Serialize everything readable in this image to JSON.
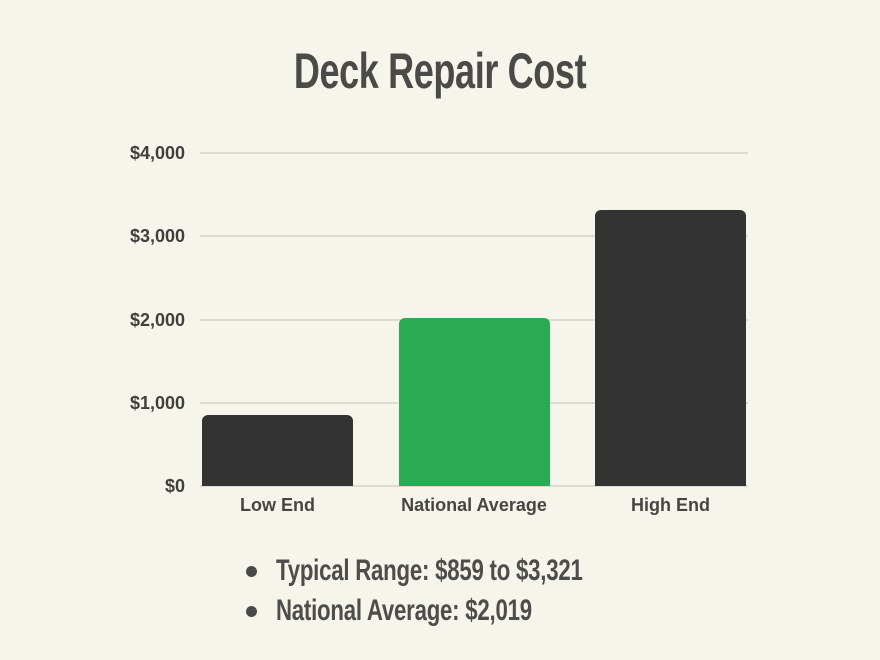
{
  "chart_data": {
    "type": "bar",
    "title": "Deck Repair Cost",
    "categories": [
      "Low End",
      "National Average",
      "High End"
    ],
    "values": [
      859,
      2019,
      3321
    ],
    "bar_colors": [
      "#333333",
      "#2aaa52",
      "#333333"
    ],
    "ylim": [
      0,
      4000
    ],
    "yticks": [
      {
        "value": 4000,
        "label": "$4,000"
      },
      {
        "value": 3000,
        "label": "$3,000"
      },
      {
        "value": 2000,
        "label": "$2,000"
      },
      {
        "value": 1000,
        "label": "$1,000"
      },
      {
        "value": 0,
        "label": "$0"
      }
    ],
    "grid": true,
    "legend": "none",
    "xlabel": "",
    "ylabel": ""
  },
  "notes": {
    "items": [
      "Typical Range: $859 to $3,321",
      "National Average: $2,019"
    ]
  },
  "colors": {
    "background": "#f6f5ec",
    "gridline": "#dedcd2",
    "bar_dark": "#333333",
    "bar_accent": "#2aaa52",
    "text": "#4a4a48"
  }
}
